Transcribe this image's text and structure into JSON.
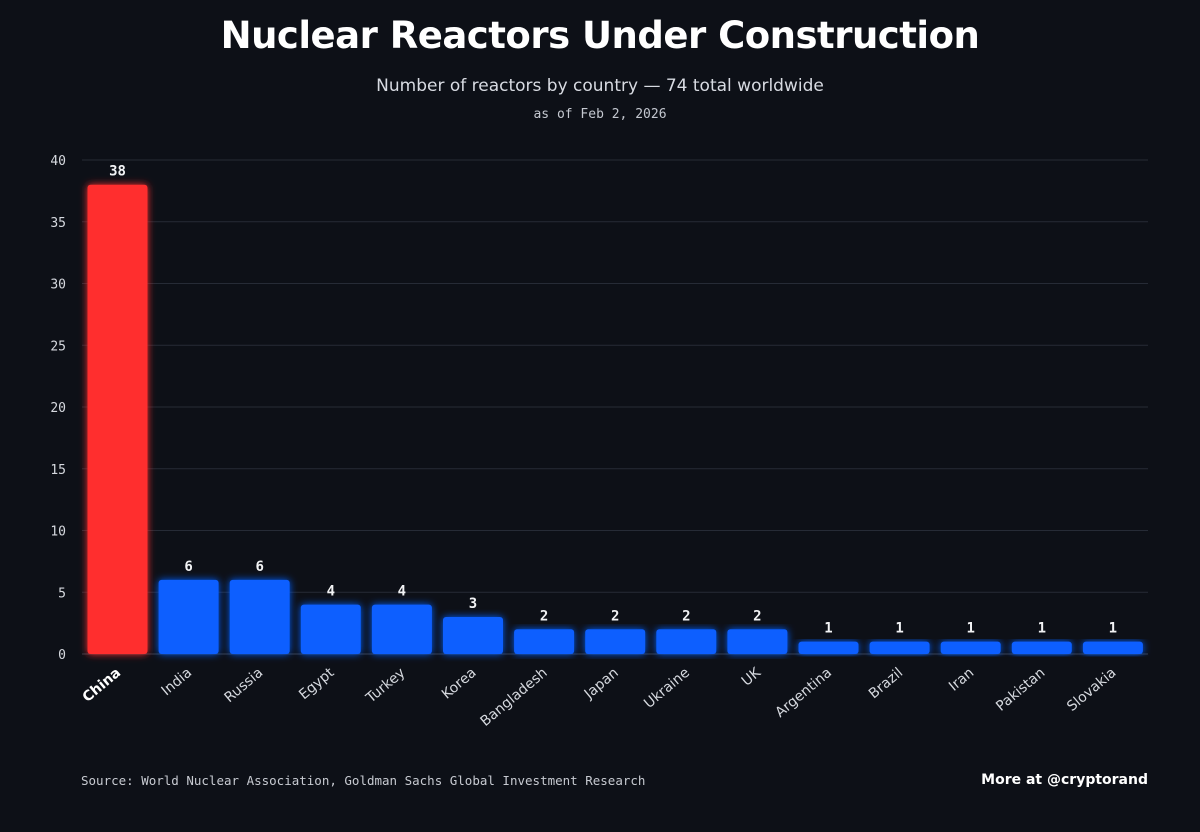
{
  "header": {
    "title": "Nuclear Reactors Under Construction",
    "subtitle": "Number of reactors by country — 74 total worldwide",
    "date": "as of Feb 2, 2026"
  },
  "footer": {
    "source": "Source: World Nuclear Association, Goldman Sachs Global Investment Research",
    "credit": "More at @cryptorand"
  },
  "colors": {
    "background": "#0d1017",
    "highlight": "#ff2d2d",
    "bar": "#0a5fff",
    "grid": "#262b36",
    "text": "#ffffff"
  },
  "chart_data": {
    "type": "bar",
    "title": "Nuclear Reactors Under Construction",
    "subtitle": "Number of reactors by country — 74 total worldwide",
    "xlabel": "",
    "ylabel": "",
    "ylim": [
      0,
      40
    ],
    "yticks": [
      0,
      5,
      10,
      15,
      20,
      25,
      30,
      35,
      40
    ],
    "grid": true,
    "highlight_category": "China",
    "categories": [
      "China",
      "India",
      "Russia",
      "Egypt",
      "Turkey",
      "Korea",
      "Bangladesh",
      "Japan",
      "Ukraine",
      "UK",
      "Argentina",
      "Brazil",
      "Iran",
      "Pakistan",
      "Slovakia"
    ],
    "values": [
      38,
      6,
      6,
      4,
      4,
      3,
      2,
      2,
      2,
      2,
      1,
      1,
      1,
      1,
      1
    ]
  }
}
